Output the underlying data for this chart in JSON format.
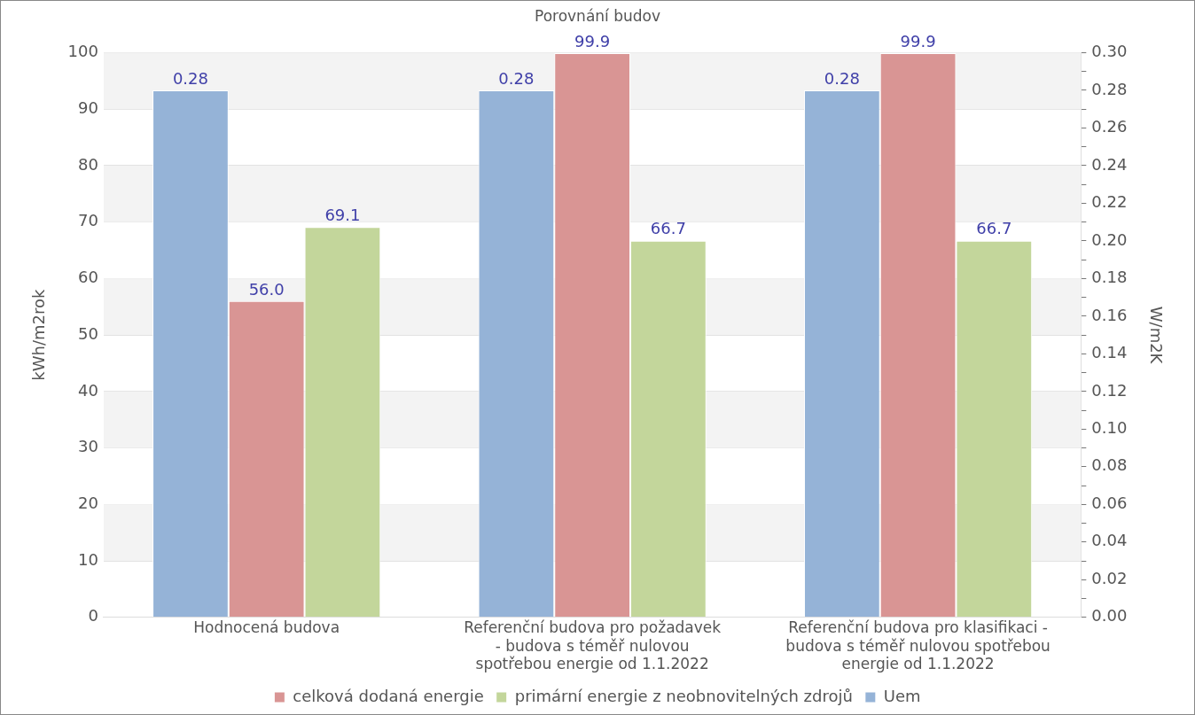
{
  "chart_data": {
    "type": "bar",
    "title": "Porovnání budov",
    "ylabel": "kWh/m2rok",
    "y2label": "W/m2K",
    "categories": [
      "Hodnocená budova",
      "Referenční budova pro požadavek - budova s téměř nulovou spotřebou energie od 1.1.2022",
      "Referenční budova pro klasifikaci - budova s téměř nulovou spotřebou energie od 1.1.2022"
    ],
    "series": [
      {
        "name": "Uem",
        "color": "#95b3d7",
        "axis": "y2",
        "values": [
          0.28,
          0.28,
          0.28
        ],
        "value_labels": [
          "0.28",
          "0.28",
          "0.28"
        ]
      },
      {
        "name": "celková dodaná energie",
        "color": "#d99594",
        "values": [
          56.0,
          99.9,
          99.9
        ],
        "value_labels": [
          "56.0",
          "99.9",
          "99.9"
        ]
      },
      {
        "name": "primární energie z neobnovitelných zdrojů",
        "color": "#c3d69b",
        "values": [
          69.1,
          66.7,
          66.7
        ],
        "value_labels": [
          "69.1",
          "66.7",
          "66.7"
        ]
      }
    ],
    "ylim": [
      0,
      100
    ],
    "yticks": [
      0,
      10,
      20,
      30,
      40,
      50,
      60,
      70,
      80,
      90,
      100
    ],
    "y2lim": [
      0,
      0.3
    ],
    "y2ticks": [
      {
        "value": 0,
        "label": "0.00"
      },
      {
        "value": 0.01,
        "label": null
      },
      {
        "value": 0.02,
        "label": "0.02"
      },
      {
        "value": 0.03,
        "label": null
      },
      {
        "value": 0.04,
        "label": "0.04"
      },
      {
        "value": 0.05,
        "label": null
      },
      {
        "value": 0.06,
        "label": "0.06"
      },
      {
        "value": 0.07,
        "label": null
      },
      {
        "value": 0.08,
        "label": "0.08"
      },
      {
        "value": 0.09,
        "label": null
      },
      {
        "value": 0.1,
        "label": "0.10"
      },
      {
        "value": 0.11,
        "label": null
      },
      {
        "value": 0.12,
        "label": "0.12"
      },
      {
        "value": 0.13,
        "label": null
      },
      {
        "value": 0.14,
        "label": "0.14"
      },
      {
        "value": 0.15,
        "label": null
      },
      {
        "value": 0.16,
        "label": "0.16"
      },
      {
        "value": 0.17,
        "label": null
      },
      {
        "value": 0.18,
        "label": "0.18"
      },
      {
        "value": 0.19,
        "label": null
      },
      {
        "value": 0.2,
        "label": "0.20"
      },
      {
        "value": 0.21,
        "label": null
      },
      {
        "value": 0.22,
        "label": "0.22"
      },
      {
        "value": 0.23,
        "label": null
      },
      {
        "value": 0.24,
        "label": "0.24"
      },
      {
        "value": 0.25,
        "label": null
      },
      {
        "value": 0.26,
        "label": "0.26"
      },
      {
        "value": 0.27,
        "label": null
      },
      {
        "value": 0.28,
        "label": "0.28"
      },
      {
        "value": 0.29,
        "label": null
      },
      {
        "value": 0.3,
        "label": "0.30"
      }
    ],
    "grid": "y",
    "legend": "bottom"
  }
}
